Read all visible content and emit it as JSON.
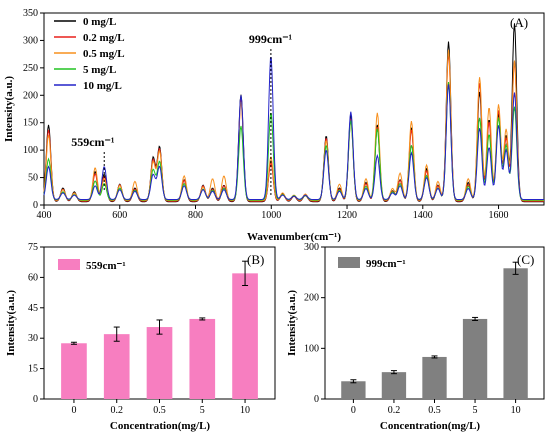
{
  "chart_data": [
    {
      "panel": "(A)",
      "type": "line",
      "xlabel": "Wavenumber(cm⁻¹)",
      "ylabel": "Intensity(a.u.)",
      "xlim": [
        400,
        1720
      ],
      "ylim": [
        0,
        350
      ],
      "x_ticks": [
        400,
        600,
        800,
        1000,
        1200,
        1400,
        1600
      ],
      "y_ticks": [
        0,
        50,
        100,
        150,
        200,
        250,
        300,
        350
      ],
      "legend_position": "top-left",
      "annotations": [
        {
          "text": "999cm⁻¹",
          "x": 999
        },
        {
          "text": "559cm⁻¹",
          "x": 559
        }
      ],
      "peaks_x": [
        412,
        450,
        480,
        535,
        559,
        600,
        640,
        688,
        705,
        770,
        820,
        845,
        875,
        920,
        999,
        1030,
        1060,
        1090,
        1145,
        1180,
        1210,
        1250,
        1280,
        1320,
        1340,
        1370,
        1410,
        1440,
        1468,
        1520,
        1550,
        1575,
        1600,
        1620,
        1642
      ],
      "series": [
        {
          "name": "0 mg/L",
          "color": "#000000",
          "peaks_y": [
            140,
            25,
            18,
            55,
            50,
            32,
            25,
            80,
            100,
            40,
            30,
            25,
            30,
            195,
            75,
            15,
            10,
            12,
            120,
            25,
            158,
            35,
            140,
            20,
            40,
            135,
            60,
            30,
            292,
            35,
            200,
            150,
            160,
            120,
            325
          ]
        },
        {
          "name": "0.2 mg/L",
          "color": "#e8201c",
          "peaks_y": [
            130,
            22,
            15,
            50,
            45,
            30,
            22,
            75,
            95,
            38,
            28,
            22,
            28,
            185,
            70,
            12,
            9,
            10,
            115,
            22,
            150,
            32,
            135,
            18,
            38,
            130,
            55,
            28,
            270,
            30,
            215,
            145,
            165,
            115,
            255
          ]
        },
        {
          "name": "0.5 mg/L",
          "color": "#f7901e",
          "peaks_y": [
            120,
            20,
            14,
            60,
            40,
            28,
            35,
            70,
            90,
            45,
            25,
            40,
            45,
            180,
            80,
            14,
            10,
            12,
            110,
            30,
            145,
            40,
            160,
            22,
            50,
            145,
            65,
            35,
            275,
            40,
            225,
            170,
            175,
            130,
            255
          ]
        },
        {
          "name": "5 mg/L",
          "color": "#22c322",
          "peaks_y": [
            75,
            15,
            10,
            35,
            30,
            22,
            18,
            55,
            70,
            30,
            20,
            18,
            22,
            135,
            160,
            10,
            8,
            8,
            100,
            18,
            145,
            25,
            130,
            15,
            30,
            100,
            45,
            22,
            215,
            25,
            150,
            120,
            150,
            100,
            170
          ]
        },
        {
          "name": "10 mg/L",
          "color": "#2424c8",
          "peaks_y": [
            60,
            12,
            8,
            25,
            60,
            18,
            15,
            45,
            60,
            25,
            18,
            15,
            18,
            190,
            262,
            8,
            6,
            8,
            90,
            15,
            160,
            20,
            80,
            12,
            25,
            85,
            40,
            20,
            210,
            20,
            130,
            95,
            135,
            90,
            195
          ]
        }
      ]
    },
    {
      "panel": "(B)",
      "type": "bar",
      "legend": "559cm⁻¹",
      "color": "#f77ec0",
      "xlabel": "Concentration(mg/L)",
      "ylabel": "Intensity(a.u.)",
      "categories": [
        "0",
        "0.2",
        "0.5",
        "5",
        "10"
      ],
      "values": [
        27.5,
        32,
        35.5,
        39.5,
        62
      ],
      "errors": [
        0.5,
        3.5,
        3.5,
        0.5,
        6
      ],
      "ylim": [
        0,
        75
      ],
      "y_ticks": [
        0,
        15,
        30,
        45,
        60,
        75
      ]
    },
    {
      "panel": "(C)",
      "type": "bar",
      "legend": "999cm⁻¹",
      "color": "#808080",
      "xlabel": "Concentration(mg/L)",
      "ylabel": "Intensity(a.u.)",
      "categories": [
        "0",
        "0.2",
        "0.5",
        "5",
        "10"
      ],
      "values": [
        35,
        53,
        83,
        158,
        258
      ],
      "errors": [
        3,
        3,
        2,
        3,
        12
      ],
      "ylim": [
        0,
        300
      ],
      "y_ticks": [
        0,
        100,
        200,
        300
      ]
    }
  ]
}
